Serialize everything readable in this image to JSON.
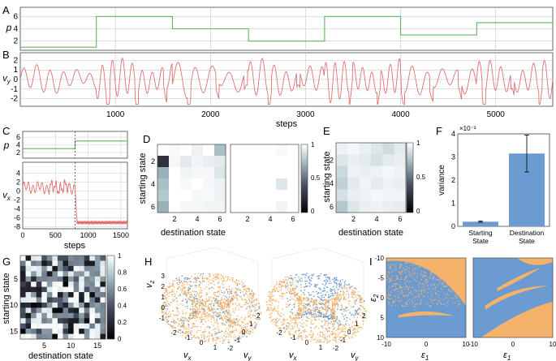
{
  "figure": {
    "colors": {
      "green": "#5cb85c",
      "red": "#e07070",
      "blue": "#6b9bd1",
      "orange": "#f5b26b",
      "axis": "#444444",
      "grid": "#bbbbbb"
    },
    "panel_letters": [
      "A",
      "B",
      "C",
      "D",
      "E",
      "F",
      "G",
      "H",
      "I"
    ],
    "colorbar_labels": {
      "d": [
        "1",
        "0.5",
        "0"
      ],
      "e": [
        "1",
        "0.5",
        "0"
      ],
      "g": [
        "1",
        "0.8",
        "0.6",
        "0.4",
        "0.2",
        "0"
      ],
      "f_exponent": "×10⁻³"
    }
  },
  "chart_data": [
    {
      "id": "A",
      "type": "line",
      "ylabel": "p",
      "xlabel": "",
      "xlim": [
        0,
        5600
      ],
      "ylim": [
        0.5,
        7.5
      ],
      "yticks": [
        "2",
        "4",
        "6"
      ],
      "segments": [
        {
          "x0": 0,
          "x1": 800,
          "y": 1
        },
        {
          "x0": 800,
          "x1": 1600,
          "y": 6
        },
        {
          "x0": 1600,
          "x1": 2400,
          "y": 4
        },
        {
          "x0": 2400,
          "x1": 3200,
          "y": 2
        },
        {
          "x0": 3200,
          "x1": 4000,
          "y": 6
        },
        {
          "x0": 4000,
          "x1": 4800,
          "y": 3
        },
        {
          "x0": 4800,
          "x1": 5600,
          "y": 5
        }
      ]
    },
    {
      "id": "B",
      "type": "line",
      "ylabel": "v_y",
      "xlabel": "steps",
      "xlim": [
        0,
        5600
      ],
      "ylim": [
        -2.8,
        2.8
      ],
      "yticks": [
        "-2",
        "-1",
        "0",
        "1",
        "2"
      ],
      "xticks": [
        "1000",
        "2000",
        "3000",
        "4000",
        "5000"
      ]
    },
    {
      "id": "C",
      "type": "line",
      "top_ylabel": "p",
      "top_yticks": [
        "2",
        "4",
        "6"
      ],
      "bottom_ylabel": "v_x",
      "bottom_yticks": [
        "4",
        "2",
        "0",
        "-2",
        "-4",
        "-6",
        "-8"
      ],
      "xlabel": "steps",
      "xticks": [
        "0",
        "500",
        "1000",
        "1500"
      ],
      "xlim": [
        0,
        1600
      ],
      "switch_step": 800,
      "p_before": 3,
      "p_after": 5
    },
    {
      "id": "D",
      "type": "heatmap",
      "xlabel": "destination state",
      "ylabel": "starting state",
      "xticks": [
        "2",
        "4",
        "6"
      ],
      "yticks": [
        "2",
        "4",
        "6"
      ],
      "rows": 6,
      "cols": 6,
      "left_values": [
        [
          0.0,
          0.02,
          0.0,
          0.05,
          0.0,
          0.25
        ],
        [
          0.75,
          0.03,
          0.08,
          0.04,
          0.06,
          0.08
        ],
        [
          0.3,
          0.0,
          0.04,
          0.03,
          0.03,
          0.1
        ],
        [
          0.25,
          0.0,
          0.02,
          0.0,
          0.03,
          0.05
        ],
        [
          0.22,
          0.0,
          0.0,
          0.03,
          0.02,
          0.05
        ],
        [
          0.3,
          0.0,
          0.03,
          0.03,
          0.04,
          0.04
        ]
      ],
      "right_values": [
        [
          0.0,
          0.0,
          0.0,
          0.0,
          0.02,
          0.0
        ],
        [
          0.0,
          0.0,
          0.0,
          0.0,
          0.0,
          0.0
        ],
        [
          0.0,
          0.0,
          0.0,
          0.0,
          0.0,
          0.0
        ],
        [
          0.0,
          0.0,
          0.0,
          0.0,
          0.1,
          0.0
        ],
        [
          0.0,
          0.0,
          0.0,
          0.0,
          0.0,
          0.0
        ],
        [
          0.0,
          0.0,
          0.0,
          0.0,
          0.04,
          0.0
        ]
      ]
    },
    {
      "id": "E",
      "type": "heatmap",
      "xlabel": "destination state",
      "ylabel": "starting state",
      "xticks": [
        "2",
        "4",
        "6"
      ],
      "yticks": [
        "2",
        "4",
        "6"
      ],
      "rows": 6,
      "cols": 6,
      "values": [
        [
          0.05,
          0.03,
          0.06,
          0.1,
          0.14,
          0.08
        ],
        [
          0.1,
          0.06,
          0.08,
          0.12,
          0.08,
          0.06
        ],
        [
          0.15,
          0.05,
          0.06,
          0.05,
          0.03,
          0.05
        ],
        [
          0.18,
          0.08,
          0.04,
          0.08,
          0.05,
          0.06
        ],
        [
          0.12,
          0.06,
          0.05,
          0.03,
          0.04,
          0.04
        ],
        [
          0.22,
          0.1,
          0.06,
          0.05,
          0.06,
          0.07
        ]
      ]
    },
    {
      "id": "F",
      "type": "bar",
      "ylabel": "variance",
      "exponent": "×10⁻³",
      "categories": [
        "Starting State",
        "Destination State"
      ],
      "values": [
        0.2,
        3.15
      ],
      "errors": [
        0.03,
        0.8
      ],
      "ylim": [
        0,
        4
      ],
      "yticks": [
        "0",
        "1",
        "2",
        "3",
        "4"
      ]
    },
    {
      "id": "G",
      "type": "heatmap",
      "xlabel": "destination state",
      "ylabel": "starting state",
      "xticks": [
        "5",
        "10",
        "15"
      ],
      "yticks": [
        "5",
        "10",
        "15"
      ],
      "rows": 16,
      "cols": 16
    },
    {
      "id": "H",
      "type": "scatter",
      "xlabel": "v_x",
      "ylabel": "v_y",
      "zlabel": "v_z",
      "zticks": [
        "3",
        "2",
        "1",
        "0",
        "-1"
      ],
      "xticks": [
        "-2",
        "-1",
        "0",
        "1"
      ],
      "yticks": [
        "-2",
        "-1",
        "0",
        "1",
        "2"
      ]
    },
    {
      "id": "I",
      "type": "heatmap",
      "xlabel": "ε₁",
      "ylabel": "ε₂",
      "xticks": [
        "-10",
        "0",
        "10"
      ],
      "yticks": [
        "-10",
        "-5",
        "0",
        "5",
        "10"
      ]
    }
  ]
}
